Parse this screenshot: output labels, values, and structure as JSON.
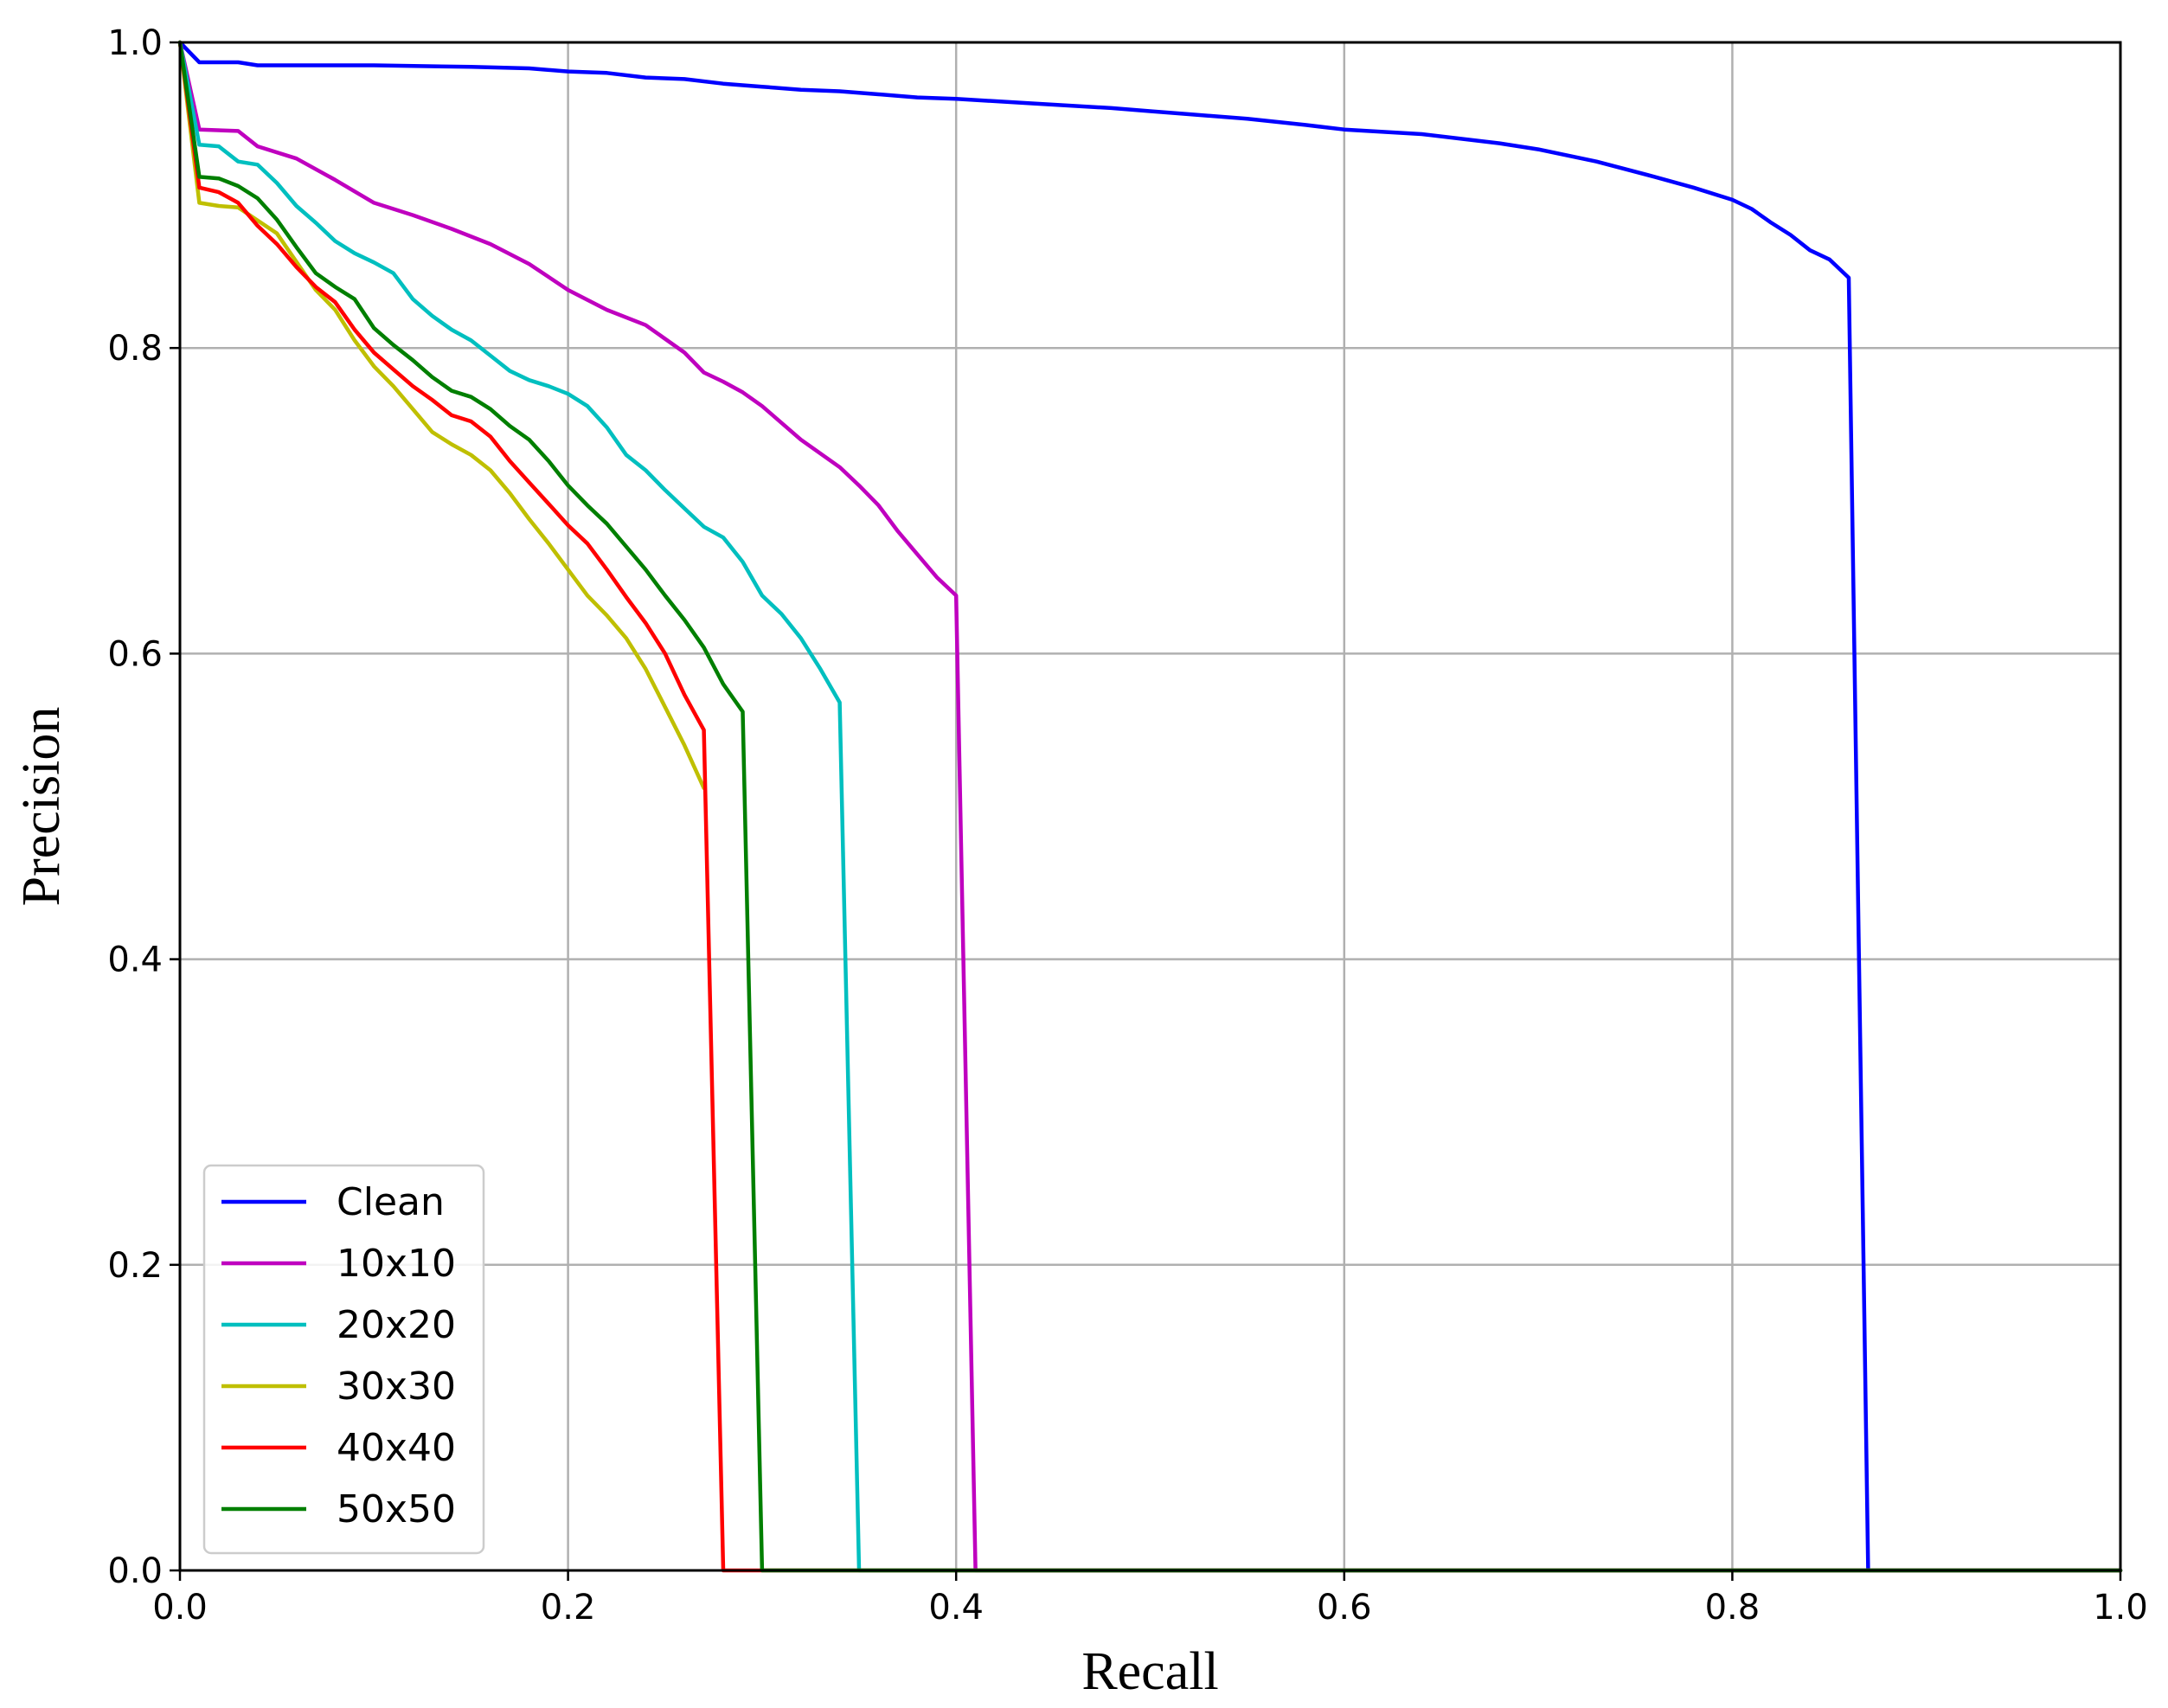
{
  "chart_data": {
    "type": "line",
    "title": "",
    "xlabel": "Recall",
    "ylabel": "Precision",
    "xlim": [
      0.0,
      1.0
    ],
    "ylim": [
      0.0,
      1.0
    ],
    "xticks": [
      "0.0",
      "0.2",
      "0.4",
      "0.6",
      "0.8",
      "1.0"
    ],
    "yticks": [
      "0.0",
      "0.2",
      "0.4",
      "0.6",
      "0.8",
      "1.0"
    ],
    "grid": true,
    "legend_position": "lower-left",
    "series": [
      {
        "name": "Clean",
        "color": "#0000ff",
        "x": [
          0.0,
          0.01,
          0.03,
          0.04,
          0.1,
          0.15,
          0.18,
          0.2,
          0.22,
          0.24,
          0.26,
          0.28,
          0.3,
          0.32,
          0.34,
          0.36,
          0.38,
          0.4,
          0.44,
          0.48,
          0.5,
          0.52,
          0.55,
          0.58,
          0.6,
          0.64,
          0.68,
          0.7,
          0.73,
          0.76,
          0.78,
          0.8,
          0.81,
          0.82,
          0.83,
          0.84,
          0.85,
          0.86,
          0.87,
          1.0
        ],
        "y": [
          1.0,
          0.987,
          0.987,
          0.985,
          0.985,
          0.984,
          0.983,
          0.981,
          0.98,
          0.977,
          0.976,
          0.973,
          0.971,
          0.969,
          0.968,
          0.966,
          0.964,
          0.963,
          0.96,
          0.957,
          0.955,
          0.953,
          0.95,
          0.946,
          0.943,
          0.94,
          0.934,
          0.93,
          0.922,
          0.912,
          0.905,
          0.897,
          0.891,
          0.882,
          0.874,
          0.864,
          0.858,
          0.846,
          0.0,
          0.0
        ]
      },
      {
        "name": "10x10",
        "color": "#bf00bf",
        "x": [
          0.0,
          0.01,
          0.03,
          0.04,
          0.06,
          0.08,
          0.1,
          0.12,
          0.14,
          0.16,
          0.18,
          0.2,
          0.22,
          0.24,
          0.26,
          0.27,
          0.28,
          0.29,
          0.3,
          0.32,
          0.34,
          0.35,
          0.36,
          0.37,
          0.38,
          0.39,
          0.4,
          0.41,
          1.0
        ],
        "y": [
          1.0,
          0.943,
          0.942,
          0.932,
          0.924,
          0.91,
          0.895,
          0.887,
          0.878,
          0.868,
          0.855,
          0.838,
          0.825,
          0.815,
          0.797,
          0.784,
          0.778,
          0.771,
          0.762,
          0.74,
          0.722,
          0.71,
          0.697,
          0.68,
          0.665,
          0.65,
          0.638,
          0.0,
          0.0
        ]
      },
      {
        "name": "20x20",
        "color": "#00bfbf",
        "x": [
          0.0,
          0.01,
          0.02,
          0.03,
          0.04,
          0.05,
          0.06,
          0.07,
          0.08,
          0.09,
          0.1,
          0.11,
          0.12,
          0.13,
          0.14,
          0.15,
          0.16,
          0.17,
          0.18,
          0.19,
          0.2,
          0.21,
          0.22,
          0.23,
          0.24,
          0.25,
          0.26,
          0.27,
          0.28,
          0.29,
          0.3,
          0.31,
          0.32,
          0.33,
          0.34,
          0.35,
          1.0
        ],
        "y": [
          1.0,
          0.933,
          0.932,
          0.922,
          0.92,
          0.908,
          0.893,
          0.882,
          0.87,
          0.862,
          0.856,
          0.849,
          0.832,
          0.821,
          0.812,
          0.805,
          0.795,
          0.785,
          0.779,
          0.775,
          0.77,
          0.762,
          0.748,
          0.73,
          0.72,
          0.707,
          0.695,
          0.683,
          0.676,
          0.66,
          0.638,
          0.626,
          0.61,
          0.59,
          0.568,
          0.0,
          0.0
        ]
      },
      {
        "name": "30x30",
        "color": "#bfbf00",
        "x": [
          0.0,
          0.01,
          0.02,
          0.03,
          0.05,
          0.07,
          0.08,
          0.09,
          0.1,
          0.11,
          0.12,
          0.13,
          0.14,
          0.15,
          0.16,
          0.17,
          0.18,
          0.19,
          0.2,
          0.21,
          0.22,
          0.23,
          0.24,
          0.25,
          0.26,
          0.27
        ],
        "y": [
          1.0,
          0.895,
          0.893,
          0.892,
          0.875,
          0.838,
          0.825,
          0.805,
          0.788,
          0.775,
          0.76,
          0.745,
          0.737,
          0.73,
          0.72,
          0.705,
          0.688,
          0.672,
          0.655,
          0.638,
          0.625,
          0.61,
          0.59,
          0.565,
          0.54,
          0.512
        ]
      },
      {
        "name": "40x40",
        "color": "#ff0000",
        "x": [
          0.0,
          0.01,
          0.02,
          0.03,
          0.04,
          0.05,
          0.06,
          0.07,
          0.08,
          0.09,
          0.1,
          0.11,
          0.12,
          0.13,
          0.14,
          0.15,
          0.16,
          0.17,
          0.18,
          0.19,
          0.2,
          0.21,
          0.22,
          0.23,
          0.24,
          0.25,
          0.26,
          0.27,
          0.28,
          1.0
        ],
        "y": [
          1.0,
          0.905,
          0.902,
          0.895,
          0.88,
          0.868,
          0.853,
          0.84,
          0.83,
          0.812,
          0.797,
          0.786,
          0.775,
          0.766,
          0.756,
          0.752,
          0.742,
          0.726,
          0.712,
          0.698,
          0.684,
          0.672,
          0.655,
          0.637,
          0.62,
          0.6,
          0.573,
          0.55,
          0.0,
          0.0
        ]
      },
      {
        "name": "50x50",
        "color": "#007f00",
        "x": [
          0.0,
          0.01,
          0.02,
          0.03,
          0.04,
          0.05,
          0.06,
          0.07,
          0.08,
          0.09,
          0.1,
          0.11,
          0.12,
          0.13,
          0.14,
          0.15,
          0.16,
          0.17,
          0.18,
          0.19,
          0.2,
          0.21,
          0.22,
          0.23,
          0.24,
          0.25,
          0.26,
          0.27,
          0.28,
          0.29,
          0.3,
          1.0
        ],
        "y": [
          1.0,
          0.912,
          0.911,
          0.906,
          0.898,
          0.884,
          0.866,
          0.849,
          0.84,
          0.832,
          0.813,
          0.802,
          0.792,
          0.781,
          0.772,
          0.768,
          0.76,
          0.749,
          0.74,
          0.726,
          0.71,
          0.697,
          0.685,
          0.67,
          0.655,
          0.638,
          0.622,
          0.604,
          0.58,
          0.562,
          0.0,
          0.0
        ]
      }
    ]
  }
}
